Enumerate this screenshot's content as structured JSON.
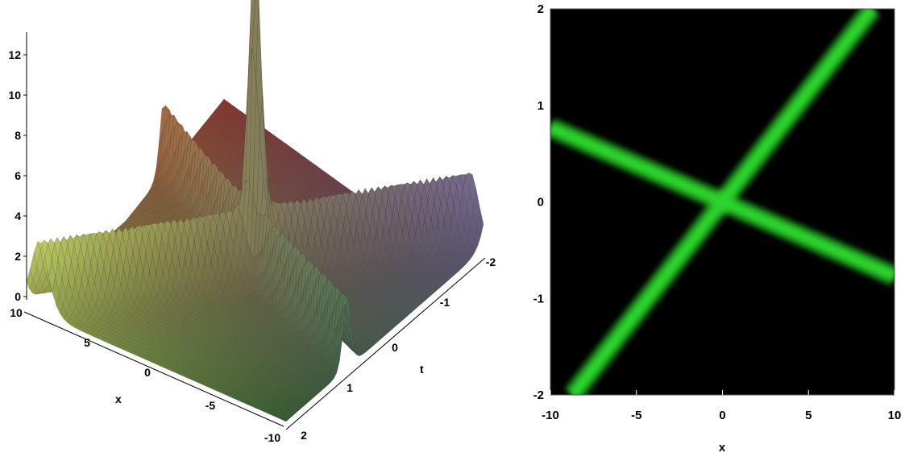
{
  "chart_data": [
    {
      "type": "surface3d",
      "colorscheme": "zhue",
      "xlabel": "x",
      "ylabel": "t",
      "zlabel": "",
      "x_range": [
        -10,
        10
      ],
      "t_range": [
        -2,
        2
      ],
      "z_range": [
        0,
        13
      ],
      "x_ticks": [
        "10",
        "5",
        "0",
        "-5",
        "-10"
      ],
      "t_ticks": [
        "-2",
        "-1",
        "0",
        "1",
        "2"
      ],
      "z_ticks": [
        "0",
        "2",
        "4",
        "6",
        "8",
        "10",
        "12"
      ],
      "peak": {
        "x": 0,
        "t": 0,
        "z": 13
      },
      "solitons": [
        {
          "name": "",
          "line": "x = 4.5 t",
          "amplitude": 3.5
        },
        {
          "name": "",
          "line": "x = -13 t",
          "amplitude": 3.5
        }
      ]
    },
    {
      "type": "density",
      "background": "#000000",
      "band_color": "#2bd32b",
      "xlabel": "x",
      "ylabel": "t",
      "x_range": [
        -10,
        10
      ],
      "y_range": [
        -2,
        2
      ],
      "x_ticks": [
        "-10",
        "-5",
        "0",
        "5",
        "10"
      ],
      "y_ticks": [
        "-2",
        "-1",
        "0",
        "1",
        "2"
      ],
      "bands": [
        {
          "from": [
            -8.7,
            -2.0
          ],
          "to": [
            8.7,
            2.0
          ]
        },
        {
          "from": [
            -10,
            0.77
          ],
          "to": [
            10,
            -0.77
          ]
        }
      ]
    }
  ]
}
